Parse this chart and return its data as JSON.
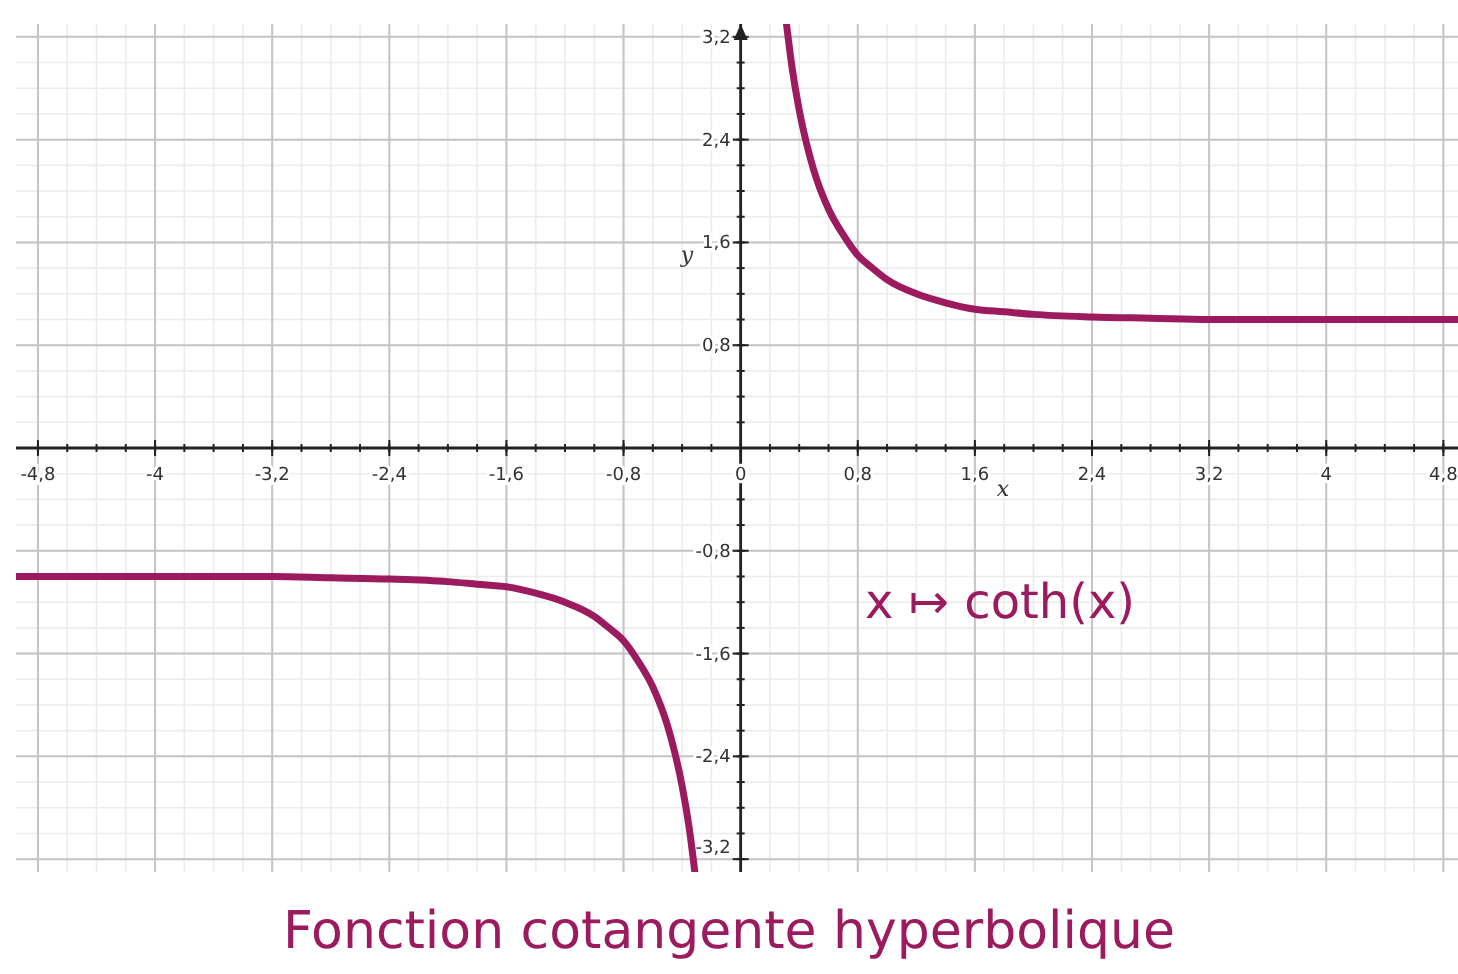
{
  "chart_data": {
    "type": "line",
    "title": "Fonction cotangente hyperbolique",
    "xlabel": "x",
    "ylabel": "y",
    "annotations": [
      "x ↦ coth(x)"
    ],
    "xlim": [
      -4.95,
      4.9
    ],
    "ylim": [
      -3.3,
      3.3
    ],
    "xticks": [
      {
        "value": -4.8,
        "label": "-4,8"
      },
      {
        "value": -4,
        "label": "-4"
      },
      {
        "value": -3.2,
        "label": "-3,2"
      },
      {
        "value": -2.4,
        "label": "-2,4"
      },
      {
        "value": -1.6,
        "label": "-1,6"
      },
      {
        "value": -0.8,
        "label": "-0,8"
      },
      {
        "value": 0,
        "label": "0"
      },
      {
        "value": 0.8,
        "label": "0,8"
      },
      {
        "value": 1.6,
        "label": "1,6"
      },
      {
        "value": 2.4,
        "label": "2,4"
      },
      {
        "value": 3.2,
        "label": "3,2"
      },
      {
        "value": 4,
        "label": "4"
      },
      {
        "value": 4.8,
        "label": "4,8"
      }
    ],
    "yticks": [
      {
        "value": -3.2,
        "label": "-3,2"
      },
      {
        "value": -2.4,
        "label": "-2,4"
      },
      {
        "value": -1.6,
        "label": "-1,6"
      },
      {
        "value": -0.8,
        "label": "-0,8"
      },
      {
        "value": 0,
        "label": null
      },
      {
        "value": 0.8,
        "label": "0,8"
      },
      {
        "value": 1.6,
        "label": "1,6"
      },
      {
        "value": 2.4,
        "label": "2,4"
      },
      {
        "value": 3.2,
        "label": "3,2"
      }
    ],
    "grid": true,
    "marker": "none",
    "line_style": "solid",
    "series": [
      {
        "color": "#9b1b5e",
        "x": [
          0.313,
          0.35,
          0.4,
          0.45,
          0.5,
          0.6,
          0.7,
          0.8,
          0.9,
          1.0,
          1.2,
          1.4,
          1.6,
          1.8,
          2.0,
          2.4,
          2.8,
          3.2,
          4.0,
          4.9
        ],
        "values": [
          3.3,
          2.97,
          2.63,
          2.37,
          2.16,
          1.86,
          1.66,
          1.5,
          1.4,
          1.31,
          1.2,
          1.13,
          1.08,
          1.06,
          1.04,
          1.02,
          1.01,
          1.0,
          1.0,
          1.0
        ]
      },
      {
        "color": "#9b1b5e",
        "x": [
          -4.95,
          -4.0,
          -3.2,
          -2.8,
          -2.4,
          -2.0,
          -1.8,
          -1.6,
          -1.4,
          -1.2,
          -1.0,
          -0.9,
          -0.8,
          -0.7,
          -0.6,
          -0.5,
          -0.45,
          -0.4,
          -0.35,
          -0.313
        ],
        "values": [
          -1.0,
          -1.0,
          -1.0,
          -1.01,
          -1.02,
          -1.04,
          -1.06,
          -1.08,
          -1.13,
          -1.2,
          -1.31,
          -1.4,
          -1.5,
          -1.66,
          -1.86,
          -2.16,
          -2.37,
          -2.63,
          -2.97,
          -3.3
        ]
      }
    ]
  }
}
